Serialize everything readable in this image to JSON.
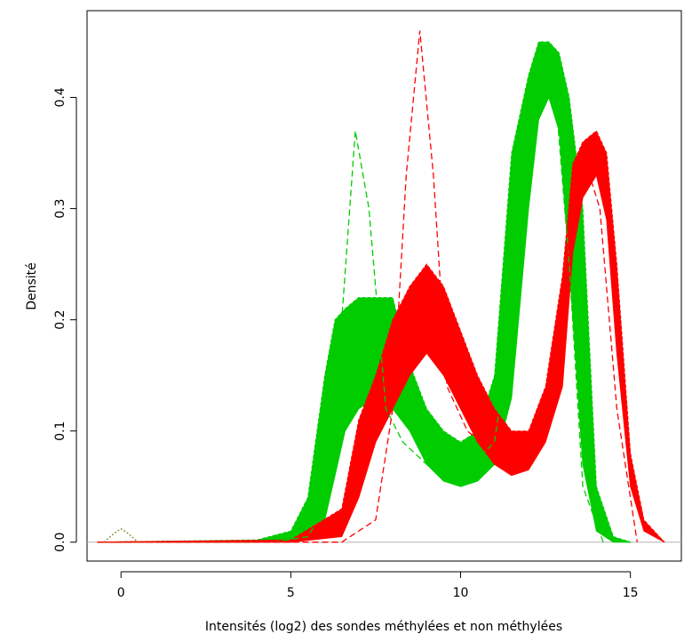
{
  "chart_data": {
    "type": "line",
    "title": "",
    "xlabel": "Intensités (log2) des sondes méthylées et non méthylées",
    "ylabel": "Densité",
    "xlim": [
      -1.0,
      16.5
    ],
    "ylim": [
      -0.017,
      0.478
    ],
    "x_ticks": [
      0,
      5,
      10,
      15
    ],
    "x_tick_labels": [
      "0",
      "5",
      "10",
      "15"
    ],
    "y_ticks": [
      0.0,
      0.1,
      0.2,
      0.3,
      0.4
    ],
    "y_tick_labels": [
      "0.0",
      "0.1",
      "0.2",
      "0.3",
      "0.4"
    ],
    "grid": false,
    "legend": "none",
    "baseline": 0.0,
    "colors": {
      "green": "#00cc00",
      "red": "#ff0000",
      "baseline": "#b3b3b3",
      "artifact": "#8b8b3a"
    },
    "series": [
      {
        "color": "green",
        "style": "bundle",
        "x": [
          -0.7,
          4.0,
          5.0,
          5.5,
          6.0,
          6.3,
          6.6,
          7.0,
          7.5,
          8.0,
          8.5,
          9.0,
          9.5,
          10.0,
          10.5,
          11.0,
          11.5,
          12.0,
          12.3,
          12.6,
          12.9,
          13.2,
          13.6,
          14.0,
          14.5,
          15.0
        ],
        "lower": [
          0.0,
          0.0,
          0.001,
          0.005,
          0.02,
          0.06,
          0.1,
          0.12,
          0.13,
          0.12,
          0.1,
          0.07,
          0.055,
          0.05,
          0.055,
          0.07,
          0.13,
          0.3,
          0.38,
          0.4,
          0.37,
          0.25,
          0.07,
          0.01,
          0.0,
          0.0
        ],
        "upper": [
          0.0,
          0.002,
          0.01,
          0.04,
          0.15,
          0.2,
          0.21,
          0.22,
          0.22,
          0.22,
          0.16,
          0.12,
          0.1,
          0.09,
          0.1,
          0.15,
          0.35,
          0.42,
          0.45,
          0.45,
          0.44,
          0.4,
          0.3,
          0.05,
          0.005,
          0.0
        ]
      },
      {
        "color": "red",
        "style": "bundle",
        "x": [
          -0.7,
          5.0,
          6.5,
          7.0,
          7.5,
          8.0,
          8.5,
          9.0,
          9.5,
          10.0,
          10.5,
          11.0,
          11.5,
          12.0,
          12.5,
          13.0,
          13.3,
          13.6,
          14.0,
          14.3,
          14.6,
          15.0,
          15.4,
          16.0
        ],
        "lower": [
          0.0,
          0.0,
          0.005,
          0.04,
          0.09,
          0.12,
          0.15,
          0.17,
          0.15,
          0.12,
          0.09,
          0.07,
          0.06,
          0.065,
          0.09,
          0.14,
          0.26,
          0.31,
          0.33,
          0.29,
          0.17,
          0.05,
          0.01,
          0.0
        ],
        "upper": [
          0.0,
          0.002,
          0.03,
          0.11,
          0.15,
          0.2,
          0.23,
          0.25,
          0.23,
          0.19,
          0.15,
          0.12,
          0.1,
          0.1,
          0.14,
          0.24,
          0.34,
          0.36,
          0.37,
          0.35,
          0.25,
          0.08,
          0.02,
          0.0
        ]
      },
      {
        "color": "green",
        "style": "dashed",
        "x": [
          -0.7,
          4.5,
          5.5,
          6.0,
          6.5,
          6.9,
          7.3,
          7.8,
          8.3,
          9.0,
          10.0,
          11.0,
          11.5,
          12.0,
          12.4,
          12.8,
          13.2,
          13.6,
          14.2
        ],
        "y": [
          0.0,
          0.0,
          0.005,
          0.03,
          0.2,
          0.37,
          0.3,
          0.12,
          0.09,
          0.07,
          0.06,
          0.09,
          0.2,
          0.38,
          0.43,
          0.4,
          0.25,
          0.05,
          0.0
        ]
      },
      {
        "color": "red",
        "style": "dashed",
        "x": [
          -0.7,
          6.5,
          7.5,
          8.0,
          8.4,
          8.8,
          9.2,
          9.6,
          10.2,
          11.0,
          12.0,
          12.8,
          13.3,
          13.7,
          14.1,
          14.6,
          15.2
        ],
        "y": [
          0.0,
          0.0,
          0.02,
          0.12,
          0.33,
          0.46,
          0.33,
          0.14,
          0.1,
          0.08,
          0.08,
          0.17,
          0.3,
          0.34,
          0.3,
          0.12,
          0.0
        ]
      },
      {
        "color": "artifact",
        "style": "dotted",
        "x": [
          -0.5,
          -0.2,
          0.0,
          0.2,
          0.5
        ],
        "y": [
          0.0,
          0.008,
          0.012,
          0.008,
          0.0
        ]
      }
    ]
  }
}
